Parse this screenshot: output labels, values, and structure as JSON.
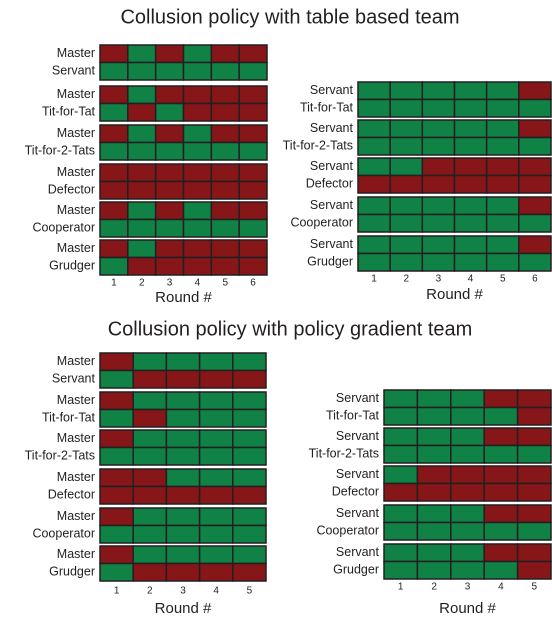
{
  "palette": {
    "R": "#861618",
    "G": "#108246"
  },
  "sections": [
    {
      "title": "Collusion policy with table based team",
      "panels": [
        {
          "rounds": [
            1,
            2,
            3,
            4,
            5,
            6
          ],
          "xlabel": "Round #",
          "pairs": [
            {
              "labels": [
                "Master",
                "Servant"
              ],
              "rows": [
                [
                  "R",
                  "G",
                  "R",
                  "G",
                  "R",
                  "R"
                ],
                [
                  "G",
                  "G",
                  "G",
                  "G",
                  "G",
                  "G"
                ]
              ]
            },
            {
              "labels": [
                "Master",
                "Tit-for-Tat"
              ],
              "rows": [
                [
                  "R",
                  "G",
                  "R",
                  "R",
                  "R",
                  "R"
                ],
                [
                  "G",
                  "R",
                  "G",
                  "R",
                  "R",
                  "R"
                ]
              ]
            },
            {
              "labels": [
                "Master",
                "Tit-for-2-Tats"
              ],
              "rows": [
                [
                  "R",
                  "G",
                  "R",
                  "G",
                  "R",
                  "R"
                ],
                [
                  "G",
                  "G",
                  "G",
                  "G",
                  "G",
                  "G"
                ]
              ]
            },
            {
              "labels": [
                "Master",
                "Defector"
              ],
              "rows": [
                [
                  "R",
                  "R",
                  "R",
                  "R",
                  "R",
                  "R"
                ],
                [
                  "R",
                  "R",
                  "R",
                  "R",
                  "R",
                  "R"
                ]
              ]
            },
            {
              "labels": [
                "Master",
                "Cooperator"
              ],
              "rows": [
                [
                  "R",
                  "G",
                  "R",
                  "G",
                  "R",
                  "R"
                ],
                [
                  "G",
                  "G",
                  "G",
                  "G",
                  "G",
                  "G"
                ]
              ]
            },
            {
              "labels": [
                "Master",
                "Grudger"
              ],
              "rows": [
                [
                  "R",
                  "G",
                  "R",
                  "R",
                  "R",
                  "R"
                ],
                [
                  "G",
                  "R",
                  "R",
                  "R",
                  "R",
                  "R"
                ]
              ]
            }
          ]
        },
        {
          "rounds": [
            1,
            2,
            3,
            4,
            5,
            6
          ],
          "xlabel": "Round #",
          "pairs": [
            {
              "labels": [
                "Servant",
                "Tit-for-Tat"
              ],
              "rows": [
                [
                  "G",
                  "G",
                  "G",
                  "G",
                  "G",
                  "R"
                ],
                [
                  "G",
                  "G",
                  "G",
                  "G",
                  "G",
                  "G"
                ]
              ]
            },
            {
              "labels": [
                "Servant",
                "Tit-for-2-Tats"
              ],
              "rows": [
                [
                  "G",
                  "G",
                  "G",
                  "G",
                  "G",
                  "R"
                ],
                [
                  "G",
                  "G",
                  "G",
                  "G",
                  "G",
                  "G"
                ]
              ]
            },
            {
              "labels": [
                "Servant",
                "Defector"
              ],
              "rows": [
                [
                  "G",
                  "G",
                  "R",
                  "R",
                  "R",
                  "R"
                ],
                [
                  "R",
                  "R",
                  "R",
                  "R",
                  "R",
                  "R"
                ]
              ]
            },
            {
              "labels": [
                "Servant",
                "Cooperator"
              ],
              "rows": [
                [
                  "G",
                  "G",
                  "G",
                  "G",
                  "G",
                  "R"
                ],
                [
                  "G",
                  "G",
                  "G",
                  "G",
                  "G",
                  "G"
                ]
              ]
            },
            {
              "labels": [
                "Servant",
                "Grudger"
              ],
              "rows": [
                [
                  "G",
                  "G",
                  "G",
                  "G",
                  "G",
                  "R"
                ],
                [
                  "G",
                  "G",
                  "G",
                  "G",
                  "G",
                  "G"
                ]
              ]
            }
          ]
        }
      ]
    },
    {
      "title": "Collusion policy with policy gradient team",
      "panels": [
        {
          "rounds": [
            1,
            2,
            3,
            4,
            5
          ],
          "xlabel": "Round #",
          "pairs": [
            {
              "labels": [
                "Master",
                "Servant"
              ],
              "rows": [
                [
                  "R",
                  "G",
                  "G",
                  "G",
                  "G"
                ],
                [
                  "G",
                  "R",
                  "R",
                  "R",
                  "R"
                ]
              ]
            },
            {
              "labels": [
                "Master",
                "Tit-for-Tat"
              ],
              "rows": [
                [
                  "R",
                  "G",
                  "G",
                  "G",
                  "G"
                ],
                [
                  "G",
                  "R",
                  "G",
                  "G",
                  "G"
                ]
              ]
            },
            {
              "labels": [
                "Master",
                "Tit-for-2-Tats"
              ],
              "rows": [
                [
                  "R",
                  "G",
                  "G",
                  "G",
                  "G"
                ],
                [
                  "G",
                  "G",
                  "G",
                  "G",
                  "G"
                ]
              ]
            },
            {
              "labels": [
                "Master",
                "Defector"
              ],
              "rows": [
                [
                  "R",
                  "R",
                  "G",
                  "G",
                  "G"
                ],
                [
                  "R",
                  "R",
                  "R",
                  "R",
                  "R"
                ]
              ]
            },
            {
              "labels": [
                "Master",
                "Cooperator"
              ],
              "rows": [
                [
                  "R",
                  "G",
                  "G",
                  "G",
                  "G"
                ],
                [
                  "G",
                  "G",
                  "G",
                  "G",
                  "G"
                ]
              ]
            },
            {
              "labels": [
                "Master",
                "Grudger"
              ],
              "rows": [
                [
                  "R",
                  "G",
                  "G",
                  "G",
                  "G"
                ],
                [
                  "G",
                  "R",
                  "R",
                  "R",
                  "R"
                ]
              ]
            }
          ]
        },
        {
          "rounds": [
            1,
            2,
            3,
            4,
            5
          ],
          "xlabel": "Round #",
          "pairs": [
            {
              "labels": [
                "Servant",
                "Tit-for-Tat"
              ],
              "rows": [
                [
                  "G",
                  "G",
                  "G",
                  "R",
                  "R"
                ],
                [
                  "G",
                  "G",
                  "G",
                  "G",
                  "R"
                ]
              ]
            },
            {
              "labels": [
                "Servant",
                "Tit-for-2-Tats"
              ],
              "rows": [
                [
                  "G",
                  "G",
                  "G",
                  "R",
                  "R"
                ],
                [
                  "G",
                  "G",
                  "G",
                  "G",
                  "G"
                ]
              ]
            },
            {
              "labels": [
                "Servant",
                "Defector"
              ],
              "rows": [
                [
                  "G",
                  "R",
                  "R",
                  "R",
                  "R"
                ],
                [
                  "R",
                  "R",
                  "R",
                  "R",
                  "R"
                ]
              ]
            },
            {
              "labels": [
                "Servant",
                "Cooperator"
              ],
              "rows": [
                [
                  "G",
                  "G",
                  "G",
                  "R",
                  "R"
                ],
                [
                  "G",
                  "G",
                  "G",
                  "G",
                  "G"
                ]
              ]
            },
            {
              "labels": [
                "Servant",
                "Grudger"
              ],
              "rows": [
                [
                  "G",
                  "G",
                  "G",
                  "R",
                  "R"
                ],
                [
                  "G",
                  "G",
                  "G",
                  "G",
                  "R"
                ]
              ]
            }
          ]
        }
      ]
    }
  ]
}
